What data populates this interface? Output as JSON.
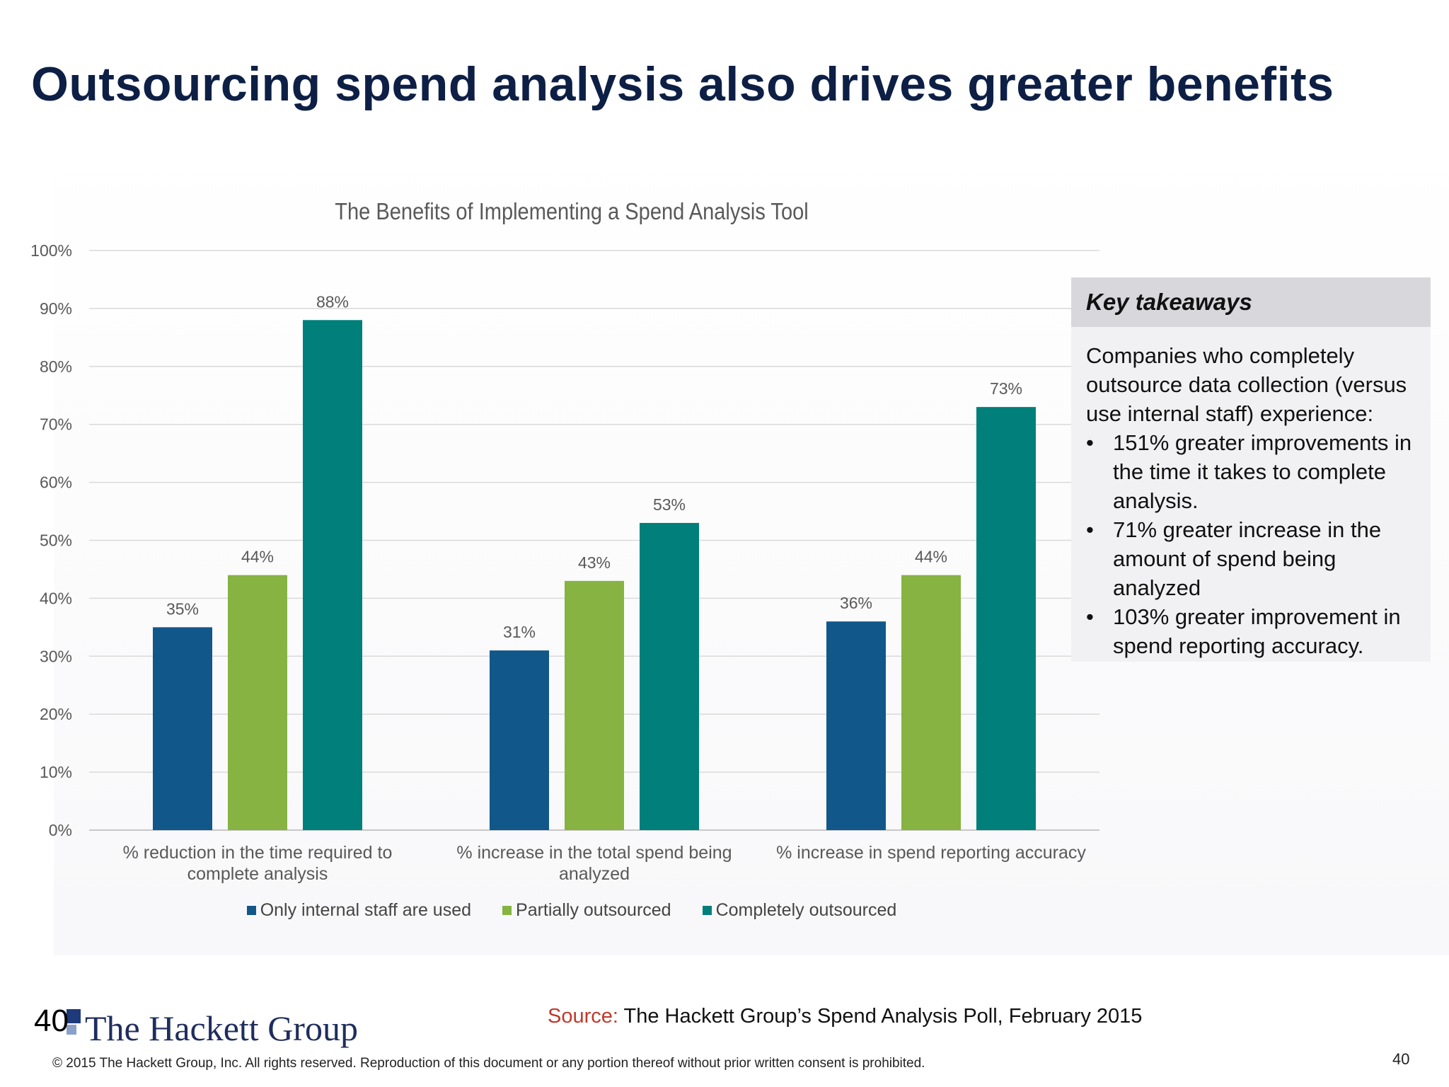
{
  "slide": {
    "title": "Outsourcing spend analysis also drives greater benefits",
    "page_number_left": "40",
    "page_number_right": "40",
    "logo_text": "The Hackett Group",
    "source_label": "Source:",
    "source_text": " The Hackett Group’s Spend Analysis Poll, February 2015",
    "copyright": "© 2015 The Hackett Group, Inc.  All rights reserved. Reproduction of this document or any portion thereof without prior written consent is prohibited."
  },
  "takeaways": {
    "title": "Key takeaways",
    "intro": "Companies who completely outsource data collection (versus use internal staff) experience:",
    "bullets": [
      "151% greater improvements in the time it takes to complete analysis.",
      "71% greater increase in the amount of spend being analyzed",
      "103% greater improvement in spend reporting accuracy."
    ]
  },
  "chart_data": {
    "type": "bar",
    "title": "The Benefits of Implementing a Spend Analysis Tool",
    "categories": [
      "% reduction in the time required to complete analysis",
      "% increase in the total spend being analyzed",
      "% increase in spend reporting accuracy"
    ],
    "series": [
      {
        "name": "Only internal staff are used",
        "color": "#12578a",
        "values": [
          35,
          31,
          36
        ],
        "labels": [
          "35%",
          "31%",
          "36%"
        ]
      },
      {
        "name": "Partially outsourced",
        "color": "#86b342",
        "values": [
          44,
          43,
          44
        ],
        "labels": [
          "44%",
          "43%",
          "44%"
        ]
      },
      {
        "name": "Completely outsourced",
        "color": "#007f7b",
        "values": [
          88,
          53,
          73
        ],
        "labels": [
          "88%",
          "53%",
          "73%"
        ]
      }
    ],
    "ylim": [
      0,
      100
    ],
    "yticks": [
      "0%",
      "10%",
      "20%",
      "30%",
      "40%",
      "50%",
      "60%",
      "70%",
      "80%",
      "90%",
      "100%"
    ],
    "grid": true,
    "legend_position": "bottom"
  }
}
